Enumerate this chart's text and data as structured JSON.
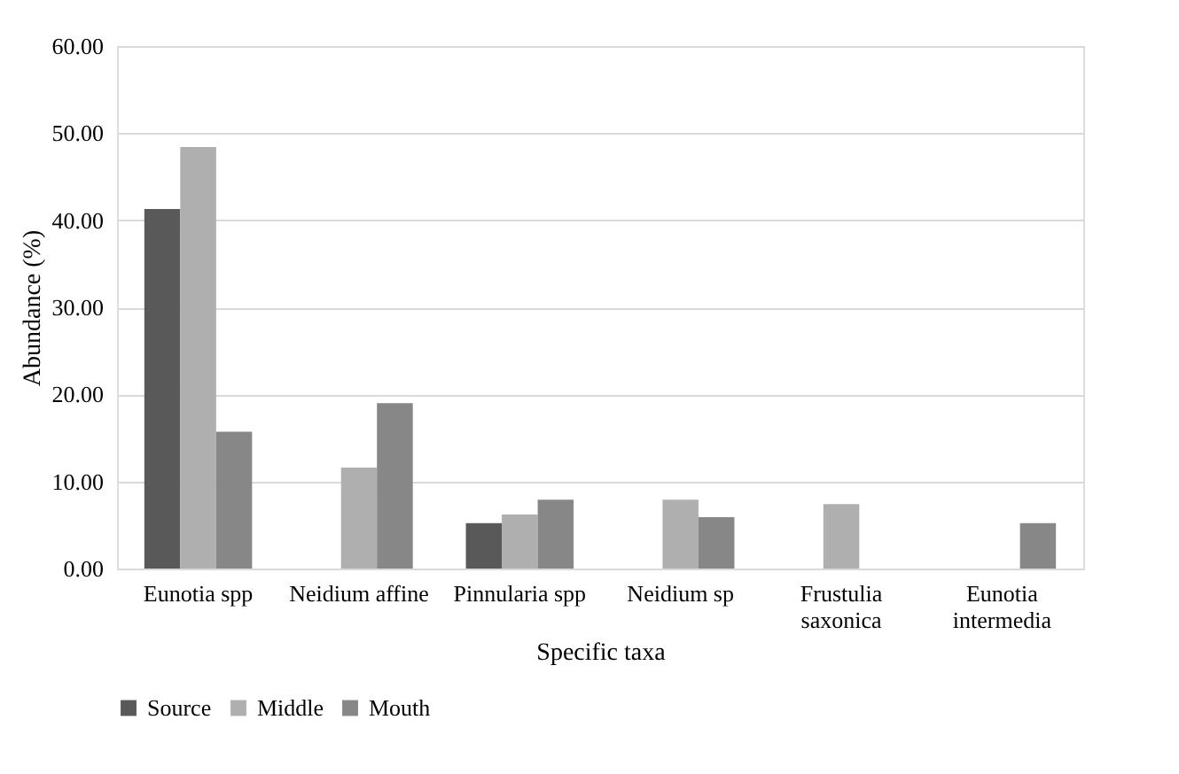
{
  "chart_data": {
    "type": "bar",
    "xlabel": "Specific taxa",
    "ylabel": "Abundance (%)",
    "categories": [
      "Eunotia spp",
      "Neidium affine",
      "Pinnularia spp",
      "Neidium sp",
      "Frustulia saxonica",
      "Eunotia intermedia"
    ],
    "series": [
      {
        "name": "Source",
        "color": "#595959",
        "values": [
          41.3,
          null,
          5.2,
          null,
          null,
          null
        ]
      },
      {
        "name": "Middle",
        "color": "#afafaf",
        "values": [
          48.4,
          11.6,
          6.2,
          7.9,
          7.4,
          null
        ]
      },
      {
        "name": "Mouth",
        "color": "#878787",
        "values": [
          15.7,
          19.0,
          7.9,
          5.9,
          null,
          5.2
        ]
      }
    ],
    "ylim": [
      0,
      60
    ],
    "yticks": [
      {
        "value": 0,
        "label": "0.00"
      },
      {
        "value": 10,
        "label": "10.00"
      },
      {
        "value": 20,
        "label": "20.00"
      },
      {
        "value": 30,
        "label": "30.00"
      },
      {
        "value": 40,
        "label": "40.00"
      },
      {
        "value": 50,
        "label": "50.00"
      },
      {
        "value": 60,
        "label": "60.00"
      }
    ],
    "grid": "y",
    "legend": "bottom"
  }
}
